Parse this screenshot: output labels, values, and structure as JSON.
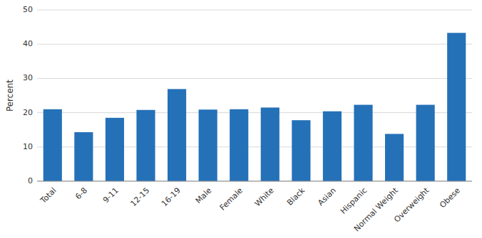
{
  "chart_data": {
    "type": "bar",
    "categories": [
      "Total",
      "6-8",
      "9-11",
      "12-15",
      "16-19",
      "Male",
      "Female",
      "White",
      "Black",
      "Asian",
      "Hispanic",
      "Normal Weight",
      "Overweight",
      "Obese"
    ],
    "values": [
      21.0,
      14.3,
      18.5,
      20.8,
      26.9,
      20.9,
      21.0,
      21.5,
      17.8,
      20.4,
      22.3,
      13.8,
      22.3,
      43.3
    ],
    "color": "#2471B8",
    "ylabel": "Percent",
    "ylim": [
      0,
      50
    ],
    "yticks": [
      0,
      10,
      20,
      30,
      40,
      50
    ],
    "grid": true
  }
}
